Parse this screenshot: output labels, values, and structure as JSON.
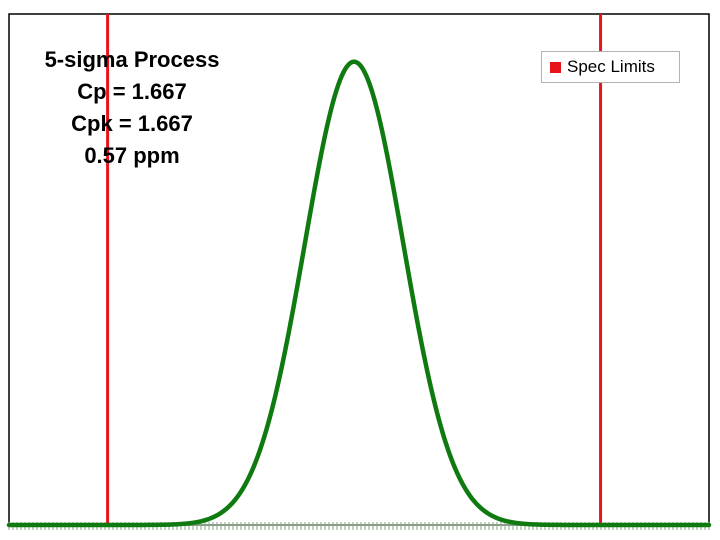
{
  "chart_data": {
    "type": "line",
    "title": "",
    "xlabel": "",
    "ylabel": "",
    "annotations": [
      "5-sigma Process",
      "Cp = 1.667",
      "Cpk = 1.667",
      "0.57 ppm"
    ],
    "distribution": {
      "shape": "normal",
      "mean": 0,
      "sigma": 1
    },
    "spec_limits": {
      "name": "Spec Limits",
      "lsl": -5,
      "usl": 5
    },
    "xlim": [
      -7,
      7.2
    ],
    "ylim": [
      0,
      0.44
    ],
    "legend": {
      "placement": "top-right",
      "entries": [
        "Spec Limits"
      ]
    },
    "grid": false,
    "colors": {
      "curve": "#0f7a0f",
      "spec_limits": "#e8141b",
      "axis_ticks": "#8aa58a",
      "frame": "#000000"
    }
  },
  "annotation_lines": [
    "5-sigma Process",
    "Cp = 1.667",
    "Cpk = 1.667",
    "0.57 ppm"
  ],
  "legend_label": "Spec Limits"
}
